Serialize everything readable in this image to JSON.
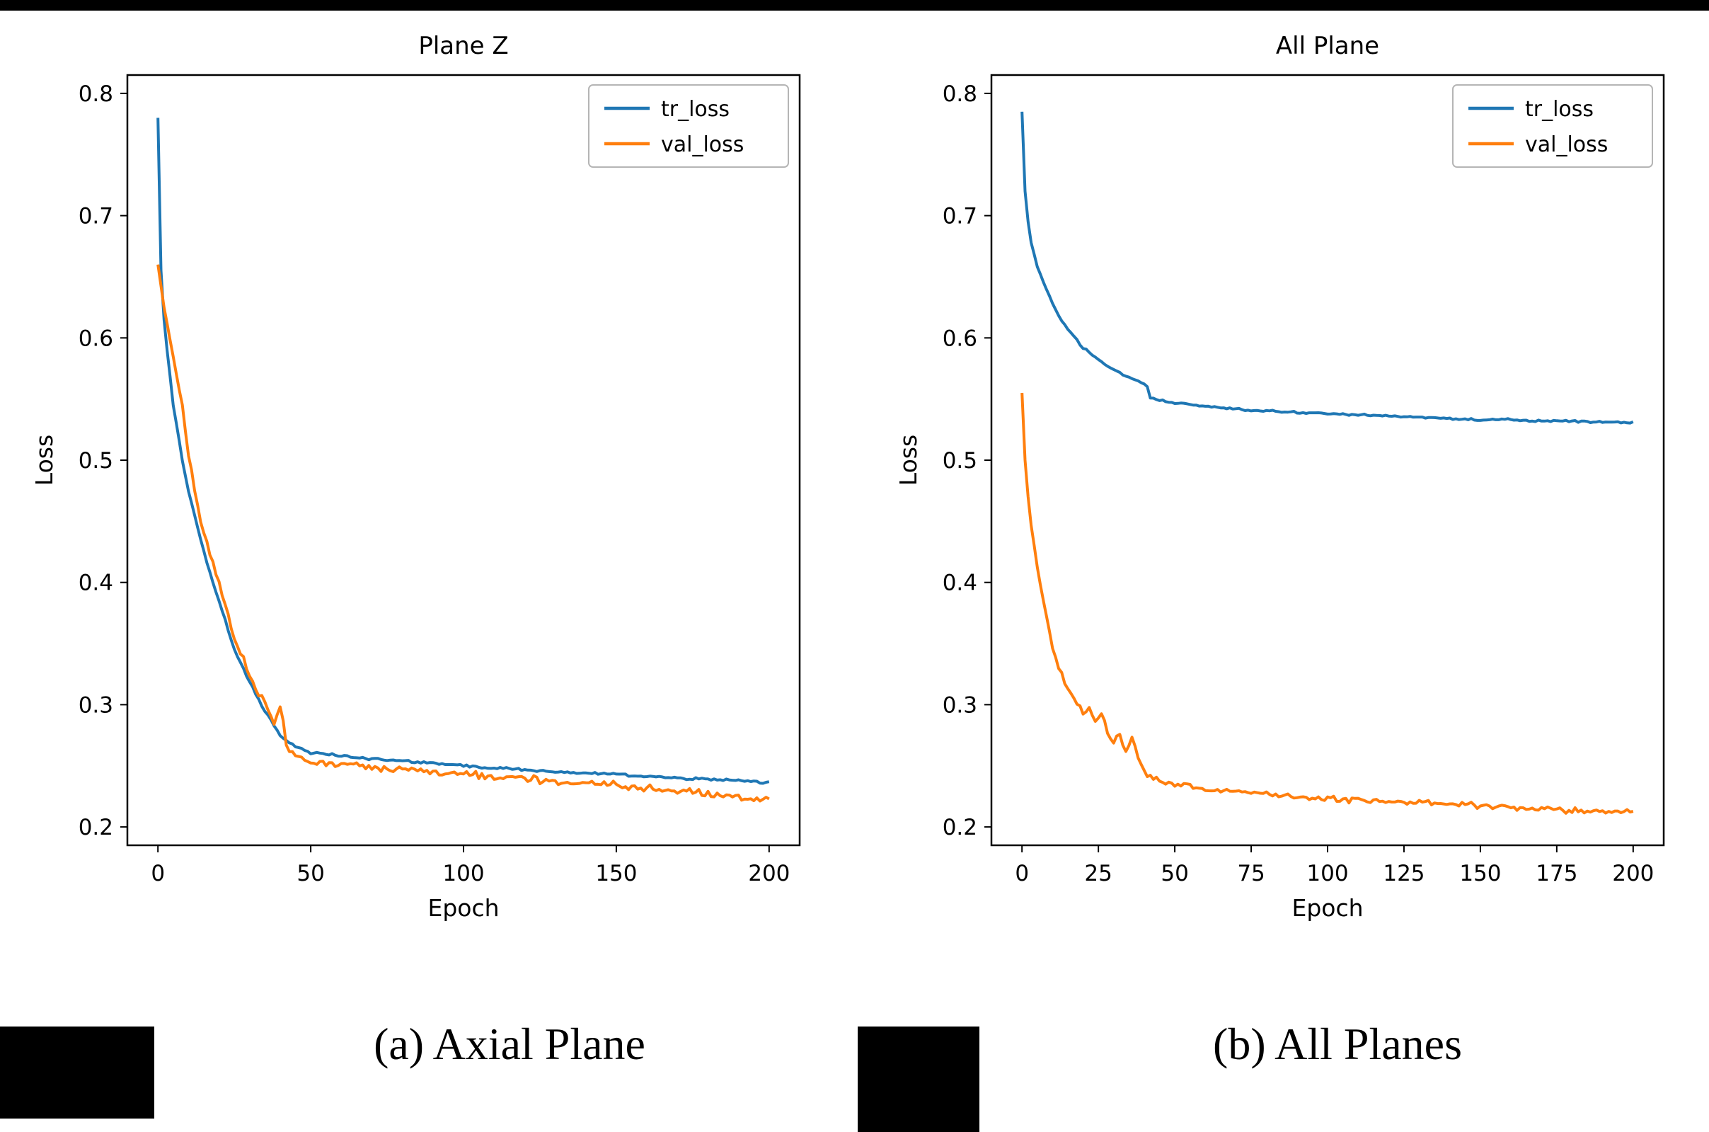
{
  "figure": {
    "captions": [
      {
        "label": "(a) Axial Plane"
      },
      {
        "label": "(b) All Planes"
      }
    ]
  },
  "colors": {
    "tr_loss": "#1f77b4",
    "val_loss": "#ff7f0e",
    "spine": "#000000",
    "legend_border": "#b5b5b5"
  },
  "chart_data": [
    {
      "type": "line",
      "title": "Plane Z",
      "xlabel": "Epoch",
      "ylabel": "Loss",
      "xlim": [
        -10,
        210
      ],
      "ylim": [
        0.185,
        0.815
      ],
      "xticks": [
        0,
        50,
        100,
        150,
        200
      ],
      "yticks": [
        0.2,
        0.3,
        0.4,
        0.5,
        0.6,
        0.7,
        0.8
      ],
      "grid": false,
      "legend_position": "upper right",
      "series": [
        {
          "name": "tr_loss",
          "color": "#1f77b4",
          "noise": 0.0015,
          "x": [
            0,
            1,
            2,
            3,
            5,
            8,
            10,
            12,
            15,
            18,
            20,
            25,
            30,
            35,
            40,
            45,
            50,
            60,
            70,
            80,
            90,
            100,
            110,
            120,
            130,
            140,
            150,
            160,
            170,
            180,
            190,
            200
          ],
          "y": [
            0.78,
            0.655,
            0.615,
            0.59,
            0.545,
            0.5,
            0.475,
            0.455,
            0.425,
            0.4,
            0.385,
            0.345,
            0.318,
            0.295,
            0.275,
            0.265,
            0.261,
            0.258,
            0.256,
            0.254,
            0.252,
            0.25,
            0.248,
            0.247,
            0.245,
            0.244,
            0.243,
            0.241,
            0.24,
            0.239,
            0.238,
            0.236
          ]
        },
        {
          "name": "val_loss",
          "color": "#ff7f0e",
          "noise": 0.0045,
          "x": [
            0,
            2,
            5,
            8,
            10,
            12,
            15,
            18,
            20,
            25,
            30,
            35,
            38,
            40,
            42,
            45,
            50,
            55,
            60,
            70,
            80,
            90,
            100,
            110,
            120,
            130,
            140,
            150,
            160,
            170,
            180,
            190,
            200
          ],
          "y": [
            0.66,
            0.625,
            0.585,
            0.545,
            0.505,
            0.475,
            0.44,
            0.415,
            0.4,
            0.355,
            0.322,
            0.3,
            0.285,
            0.298,
            0.268,
            0.258,
            0.253,
            0.252,
            0.25,
            0.248,
            0.247,
            0.245,
            0.243,
            0.241,
            0.24,
            0.237,
            0.236,
            0.234,
            0.231,
            0.229,
            0.227,
            0.224,
            0.221
          ]
        }
      ]
    },
    {
      "type": "line",
      "title": "All Plane",
      "xlabel": "Epoch",
      "ylabel": "Loss",
      "xlim": [
        -10,
        210
      ],
      "ylim": [
        0.185,
        0.815
      ],
      "xticks": [
        0,
        25,
        50,
        75,
        100,
        125,
        150,
        175,
        200
      ],
      "yticks": [
        0.2,
        0.3,
        0.4,
        0.5,
        0.6,
        0.7,
        0.8
      ],
      "grid": false,
      "legend_position": "upper right",
      "series": [
        {
          "name": "tr_loss",
          "color": "#1f77b4",
          "noise": 0.0012,
          "x": [
            0,
            1,
            2,
            3,
            5,
            8,
            10,
            12,
            15,
            18,
            20,
            25,
            30,
            35,
            40,
            41,
            42,
            45,
            50,
            60,
            70,
            80,
            90,
            100,
            110,
            120,
            130,
            140,
            150,
            160,
            170,
            180,
            190,
            200
          ],
          "y": [
            0.785,
            0.72,
            0.695,
            0.678,
            0.658,
            0.64,
            0.628,
            0.618,
            0.607,
            0.598,
            0.592,
            0.582,
            0.574,
            0.568,
            0.562,
            0.56,
            0.551,
            0.549,
            0.547,
            0.544,
            0.542,
            0.54,
            0.539,
            0.538,
            0.537,
            0.536,
            0.535,
            0.534,
            0.533,
            0.533,
            0.532,
            0.532,
            0.531,
            0.531
          ]
        },
        {
          "name": "val_loss",
          "color": "#ff7f0e",
          "noise": 0.0035,
          "x": [
            0,
            1,
            2,
            3,
            5,
            8,
            10,
            12,
            15,
            18,
            20,
            22,
            24,
            26,
            28,
            30,
            32,
            34,
            36,
            38,
            40,
            42,
            45,
            50,
            55,
            60,
            70,
            80,
            90,
            100,
            110,
            120,
            130,
            140,
            150,
            160,
            170,
            180,
            190,
            200
          ],
          "y": [
            0.555,
            0.5,
            0.47,
            0.447,
            0.412,
            0.372,
            0.347,
            0.33,
            0.313,
            0.301,
            0.293,
            0.297,
            0.285,
            0.293,
            0.278,
            0.27,
            0.276,
            0.262,
            0.273,
            0.257,
            0.247,
            0.24,
            0.237,
            0.235,
            0.233,
            0.231,
            0.229,
            0.227,
            0.225,
            0.223,
            0.222,
            0.221,
            0.22,
            0.219,
            0.217,
            0.216,
            0.215,
            0.214,
            0.213,
            0.212
          ]
        }
      ]
    }
  ]
}
